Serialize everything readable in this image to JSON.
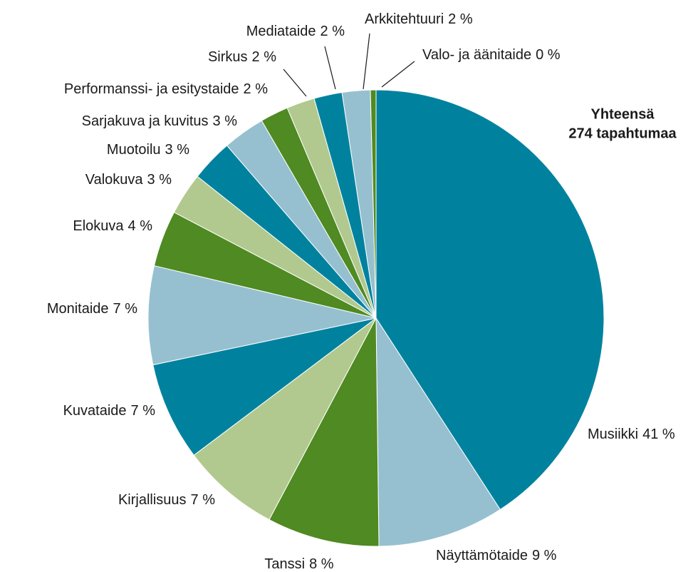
{
  "chart_data": {
    "type": "pie",
    "categories": [
      "Musiikki",
      "Näyttämötaide",
      "Tanssi",
      "Kirjallisuus",
      "Kuvataide",
      "Monitaide",
      "Elokuva",
      "Valokuva",
      "Muotoilu",
      "Sarjakuva ja kuvitus",
      "Performanssi- ja esitystaide",
      "Sirkus",
      "Mediataide",
      "Arkkitehtuuri",
      "Valo- ja äänitaide"
    ],
    "values": [
      41,
      9,
      8,
      7,
      7,
      7,
      4,
      3,
      3,
      3,
      2,
      2,
      2,
      2,
      0.4
    ],
    "value_labels": [
      "41 %",
      "9 %",
      "8 %",
      "7 %",
      "7 %",
      "7 %",
      "4 %",
      "3 %",
      "3 %",
      "3 %",
      "2 %",
      "2 %",
      "2 %",
      "2 %",
      "0 %"
    ],
    "colors": [
      "#00829f",
      "#96c0cf",
      "#4f8a22",
      "#b1c98f",
      "#00829f",
      "#96c0cf",
      "#4f8a22",
      "#b1c98f",
      "#00829f",
      "#96c0cf",
      "#4f8a22",
      "#b1c98f",
      "#00829f",
      "#96c0cf",
      "#4f8a22"
    ],
    "annotation": [
      "Yhteensä",
      "274 tapahtumaa"
    ]
  }
}
